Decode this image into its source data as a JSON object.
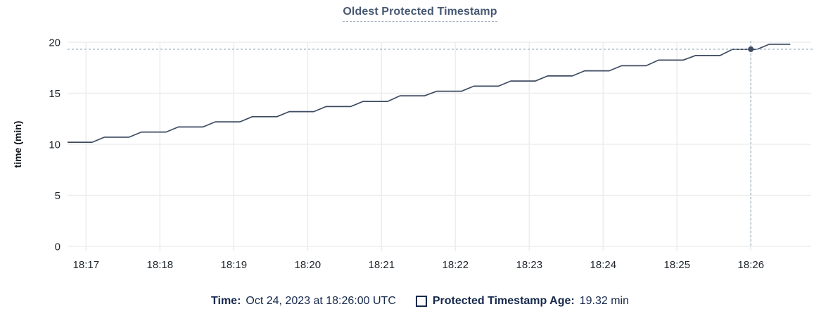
{
  "title": "Oldest Protected Timestamp",
  "footer": {
    "time_label": "Time:",
    "time_value": "Oct 24, 2023 at 18:26:00 UTC",
    "series_label": "Protected Timestamp Age:",
    "series_value": "19.32 min"
  },
  "colors": {
    "line": "#3d4a61",
    "grid": "#ededed",
    "tick_text": "#20262e",
    "crosshair": "#a3b7c2",
    "dot": "#3d4a61",
    "title_text": "#475872",
    "legend_text": "#16294c"
  },
  "chart_data": {
    "type": "line",
    "title": "Oldest Protected Timestamp",
    "xlabel": "",
    "ylabel": "time (min)",
    "grid": true,
    "legend_position": "bottom",
    "ylim": [
      0,
      20
    ],
    "y_ticks": [
      0,
      5,
      10,
      15,
      20
    ],
    "x_domain_seconds": [
      0,
      604
    ],
    "x_base_time": "18:16:45",
    "x_ticks": [
      {
        "t": 15,
        "label": "18:17"
      },
      {
        "t": 75,
        "label": "18:18"
      },
      {
        "t": 135,
        "label": "18:19"
      },
      {
        "t": 195,
        "label": "18:20"
      },
      {
        "t": 255,
        "label": "18:21"
      },
      {
        "t": 315,
        "label": "18:22"
      },
      {
        "t": 375,
        "label": "18:23"
      },
      {
        "t": 435,
        "label": "18:24"
      },
      {
        "t": 495,
        "label": "18:25"
      },
      {
        "t": 555,
        "label": "18:26"
      }
    ],
    "hover": {
      "t": 555,
      "time_label": "Oct 24, 2023 at 18:26:00 UTC",
      "value": 19.32,
      "unit": "min"
    },
    "series": [
      {
        "name": "Protected Timestamp Age",
        "unit": "min",
        "points": [
          [
            0,
            10.2
          ],
          [
            20,
            10.2
          ],
          [
            30,
            10.7
          ],
          [
            50,
            10.7
          ],
          [
            60,
            11.2
          ],
          [
            80,
            11.2
          ],
          [
            90,
            11.7
          ],
          [
            110,
            11.7
          ],
          [
            120,
            12.2
          ],
          [
            140,
            12.2
          ],
          [
            150,
            12.7
          ],
          [
            170,
            12.7
          ],
          [
            180,
            13.2
          ],
          [
            200,
            13.2
          ],
          [
            210,
            13.7
          ],
          [
            230,
            13.7
          ],
          [
            240,
            14.2
          ],
          [
            260,
            14.2
          ],
          [
            270,
            14.75
          ],
          [
            290,
            14.75
          ],
          [
            300,
            15.2
          ],
          [
            320,
            15.2
          ],
          [
            330,
            15.7
          ],
          [
            350,
            15.7
          ],
          [
            360,
            16.2
          ],
          [
            380,
            16.2
          ],
          [
            390,
            16.7
          ],
          [
            410,
            16.7
          ],
          [
            420,
            17.2
          ],
          [
            440,
            17.2
          ],
          [
            450,
            17.7
          ],
          [
            470,
            17.7
          ],
          [
            480,
            18.25
          ],
          [
            500,
            18.25
          ],
          [
            510,
            18.7
          ],
          [
            530,
            18.7
          ],
          [
            540,
            19.3
          ],
          [
            560,
            19.3
          ],
          [
            570,
            19.8
          ],
          [
            587,
            19.8
          ]
        ]
      }
    ]
  }
}
